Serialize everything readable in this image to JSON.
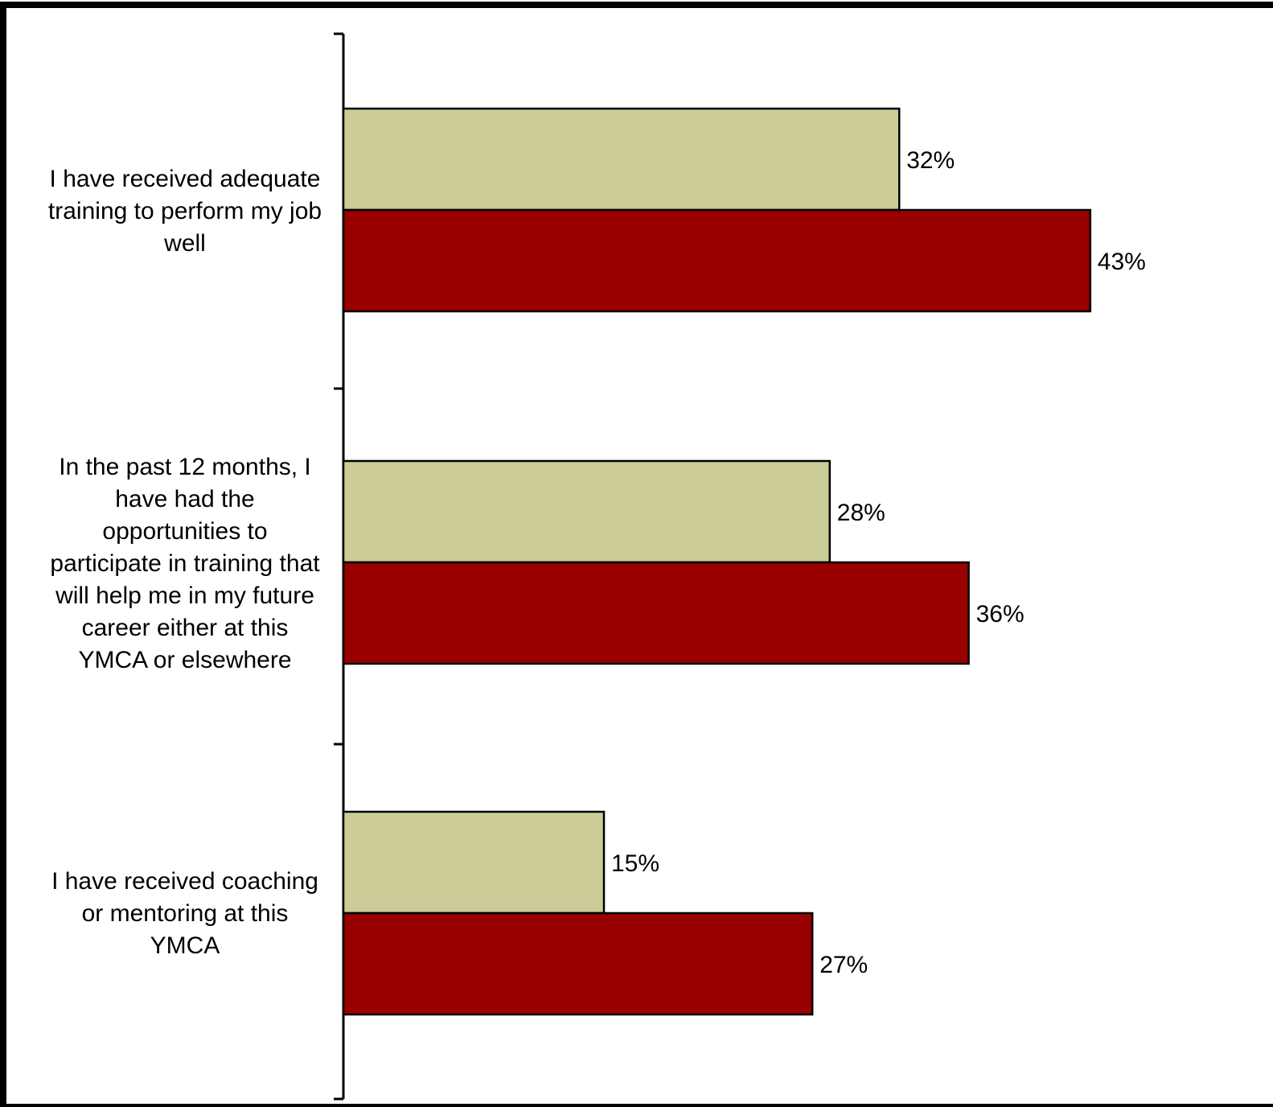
{
  "chart_data": {
    "type": "bar",
    "orientation": "horizontal",
    "categories": [
      "I have received adequate\ntraining to perform my job\nwell",
      "In the past 12 months, I\nhave had the\nopportunities to\nparticipate in training that\nwill help me in my future\ncareer either at this\nYMCA or elsewhere",
      "I have received coaching\nor mentoring at this\nYMCA"
    ],
    "series": [
      {
        "values": [
          32,
          28,
          15
        ],
        "color": "#CCCC99",
        "labels": [
          "32%",
          "28%",
          "15%"
        ]
      },
      {
        "values": [
          43,
          36,
          27
        ],
        "color": "#990000",
        "labels": [
          "43%",
          "36%",
          "27%"
        ]
      }
    ],
    "xlim": [
      0,
      50
    ],
    "grid": false,
    "legend": "none",
    "title": "",
    "xlabel": "",
    "ylabel": ""
  }
}
